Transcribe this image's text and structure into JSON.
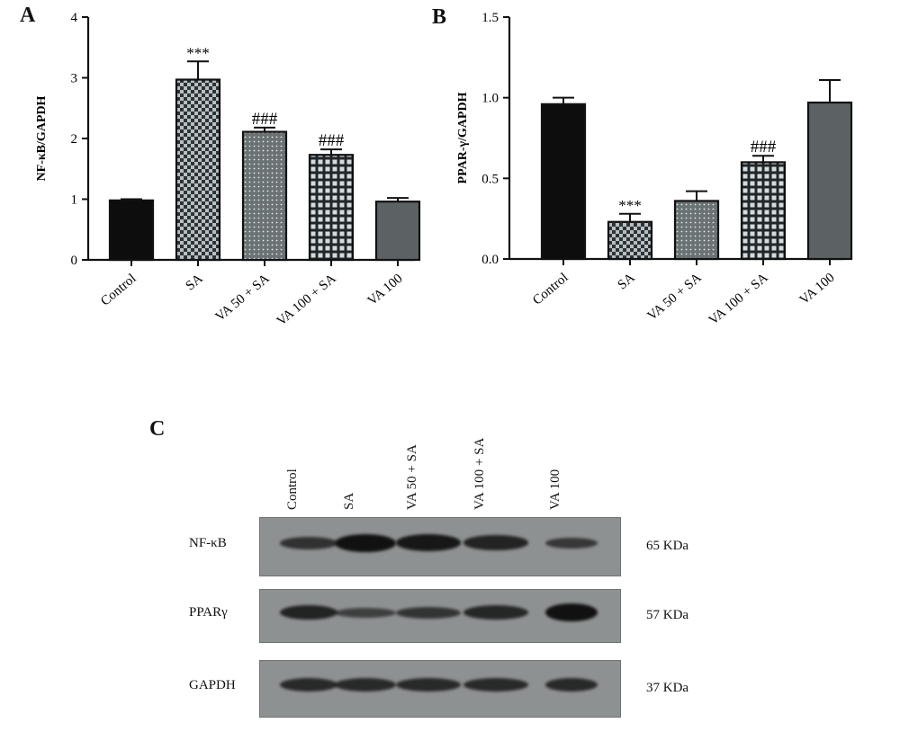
{
  "panels": {
    "a": "A",
    "b": "B",
    "c": "C"
  },
  "chart_data": [
    {
      "type": "bar",
      "panel": "A",
      "categories": [
        "Control",
        "SA",
        "VA 50 + SA",
        "VA 100 + SA",
        "VA 100"
      ],
      "values": [
        0.98,
        2.97,
        2.11,
        1.73,
        0.96
      ],
      "errors": [
        0.02,
        0.3,
        0.07,
        0.09,
        0.06
      ],
      "annotations": [
        "",
        "***",
        "###",
        "###",
        ""
      ],
      "ylabel": "NF-κB/GAPDH",
      "ylim": [
        0,
        4
      ],
      "yticks": [
        0,
        1,
        2,
        3,
        4
      ],
      "fills": [
        "solid-black",
        "checker",
        "dots",
        "grid",
        "solid-gray"
      ]
    },
    {
      "type": "bar",
      "panel": "B",
      "categories": [
        "Control",
        "SA",
        "VA 50 + SA",
        "VA 100 + SA",
        "VA 100"
      ],
      "values": [
        0.96,
        0.23,
        0.36,
        0.6,
        0.97
      ],
      "errors": [
        0.04,
        0.05,
        0.06,
        0.04,
        0.14
      ],
      "annotations": [
        "",
        "***",
        "",
        "###",
        ""
      ],
      "ylabel": "PPAR-γ/GAPDH",
      "ylim": [
        0,
        1.5
      ],
      "yticks": [
        "0.0",
        "0.5",
        "1.0",
        "1.5"
      ],
      "fills": [
        "solid-black",
        "checker",
        "dots",
        "grid",
        "solid-gray"
      ]
    }
  ],
  "western_blot": {
    "lanes": [
      "Control",
      "SA",
      "VA 50 + SA",
      "VA 100 + SA",
      "VA 100"
    ],
    "rows": [
      {
        "protein": "NF-κB",
        "size": "65 KDa",
        "intensities": [
          0.55,
          1.0,
          0.9,
          0.75,
          0.45
        ]
      },
      {
        "protein": "PPARγ",
        "size": "57 KDa",
        "intensities": [
          0.75,
          0.35,
          0.5,
          0.7,
          1.0
        ]
      },
      {
        "protein": "GAPDH",
        "size": "37 KDa",
        "intensities": [
          0.65,
          0.65,
          0.65,
          0.65,
          0.65
        ]
      }
    ]
  },
  "colors": {
    "bar_black": "#0d0d0d",
    "bar_gray": "#5c6263",
    "pattern_dark": "#2e3436",
    "pattern_light": "#b7bfc2",
    "blot_bg": "#8e9192"
  }
}
